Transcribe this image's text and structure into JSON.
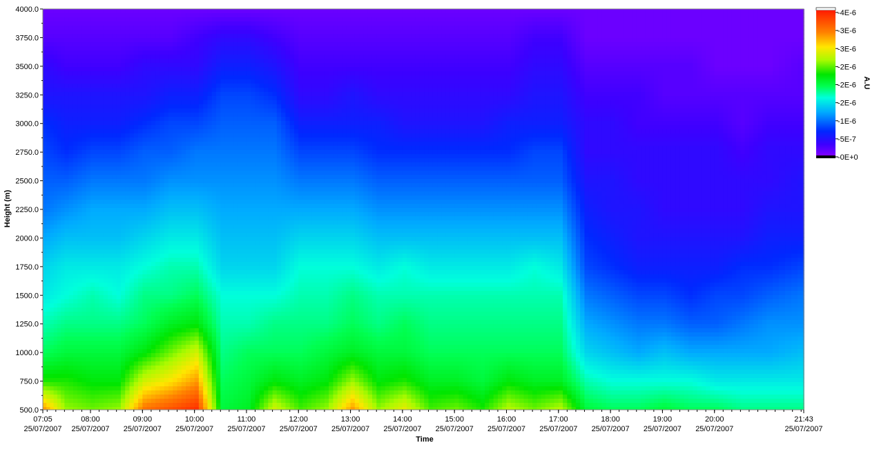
{
  "chart_data": {
    "type": "heatmap",
    "title": "",
    "xlabel": "Time",
    "ylabel": "Height (m)",
    "ylim": [
      500,
      4000
    ],
    "xlim": [
      "07:05",
      "21:43"
    ],
    "date": "25/07/2007",
    "y_ticks": [
      "500.0",
      "750.0",
      "1000.0",
      "1250.0",
      "1500.0",
      "1750.0",
      "2000.0",
      "2250.0",
      "2500.0",
      "2750.0",
      "3000.0",
      "3250.0",
      "3500.0",
      "3750.0",
      "4000.0"
    ],
    "x_ticks": [
      {
        "time": "07:05",
        "date": "25/07/2007"
      },
      {
        "time": "08:00",
        "date": "25/07/2007"
      },
      {
        "time": "09:00",
        "date": "25/07/2007"
      },
      {
        "time": "10:00",
        "date": "25/07/2007"
      },
      {
        "time": "11:00",
        "date": "25/07/2007"
      },
      {
        "time": "12:00",
        "date": "25/07/2007"
      },
      {
        "time": "13:00",
        "date": "25/07/2007"
      },
      {
        "time": "14:00",
        "date": "25/07/2007"
      },
      {
        "time": "15:00",
        "date": "25/07/2007"
      },
      {
        "time": "16:00",
        "date": "25/07/2007"
      },
      {
        "time": "17:00",
        "date": "25/07/2007"
      },
      {
        "time": "18:00",
        "date": "25/07/2007"
      },
      {
        "time": "19:00",
        "date": "25/07/2007"
      },
      {
        "time": "20:00",
        "date": "25/07/2007"
      },
      {
        "time": "21:43",
        "date": "25/07/2007"
      }
    ],
    "colorbar": {
      "label": "A.U",
      "ticks": [
        "4E-6",
        "3E-6",
        "3E-6",
        "2E-6",
        "2E-6",
        "2E-6",
        "1E-6",
        "5E-7",
        "0E+0"
      ],
      "max": 4e-06,
      "min": 0
    },
    "grid": false,
    "profile_heights_m": [
      500,
      750,
      1000,
      1250,
      1500,
      1750,
      2000,
      2250,
      2500,
      2750,
      3000,
      3250,
      3500,
      3750,
      4000
    ],
    "times": [
      "07:05",
      "07:30",
      "08:00",
      "08:30",
      "09:00",
      "09:30",
      "10:00",
      "10:30",
      "11:00",
      "11:30",
      "12:00",
      "12:30",
      "13:00",
      "13:30",
      "14:00",
      "14:30",
      "15:00",
      "15:30",
      "16:00",
      "16:30",
      "17:00",
      "17:30",
      "18:00",
      "18:30",
      "19:00",
      "19:30",
      "20:00",
      "20:30",
      "21:00",
      "21:43"
    ],
    "values_e6": [
      [
        3.3,
        2.3,
        1.9,
        1.7,
        1.5,
        1.4,
        1.2,
        1.0,
        0.9,
        0.8,
        0.7,
        0.5,
        0.4,
        0.2,
        0.1
      ],
      [
        2.6,
        2.3,
        2.0,
        1.8,
        1.6,
        1.5,
        1.3,
        1.1,
        0.9,
        0.7,
        0.6,
        0.5,
        0.3,
        0.2,
        0.1
      ],
      [
        2.5,
        2.2,
        2.0,
        1.8,
        1.7,
        1.5,
        1.3,
        1.2,
        1.0,
        0.8,
        0.6,
        0.5,
        0.3,
        0.2,
        0.1
      ],
      [
        2.6,
        2.2,
        2.0,
        1.8,
        1.6,
        1.5,
        1.3,
        1.2,
        1.0,
        0.8,
        0.6,
        0.5,
        0.3,
        0.2,
        0.1
      ],
      [
        3.5,
        2.8,
        2.2,
        1.9,
        1.8,
        1.6,
        1.4,
        1.2,
        1.0,
        0.9,
        0.7,
        0.5,
        0.4,
        0.2,
        0.1
      ],
      [
        3.7,
        3.0,
        2.5,
        2.1,
        1.8,
        1.7,
        1.5,
        1.3,
        1.1,
        0.9,
        0.8,
        0.6,
        0.4,
        0.2,
        0.1
      ],
      [
        3.9,
        3.3,
        2.8,
        2.2,
        1.9,
        1.7,
        1.5,
        1.3,
        1.1,
        1.0,
        0.8,
        0.6,
        0.4,
        0.3,
        0.1
      ],
      [
        2.0,
        1.9,
        1.8,
        1.7,
        1.6,
        1.4,
        1.3,
        1.2,
        1.1,
        1.0,
        0.9,
        0.8,
        0.6,
        0.4,
        0.1
      ],
      [
        2.1,
        2.0,
        1.9,
        1.7,
        1.6,
        1.4,
        1.3,
        1.2,
        1.1,
        1.0,
        0.9,
        0.8,
        0.6,
        0.4,
        0.1
      ],
      [
        2.8,
        2.2,
        1.9,
        1.8,
        1.6,
        1.4,
        1.3,
        1.2,
        1.1,
        1.0,
        0.9,
        0.7,
        0.5,
        0.3,
        0.1
      ],
      [
        2.4,
        2.1,
        1.9,
        1.8,
        1.7,
        1.6,
        1.4,
        1.2,
        1.0,
        0.8,
        0.6,
        0.4,
        0.3,
        0.2,
        0.1
      ],
      [
        2.6,
        2.2,
        2.0,
        1.8,
        1.7,
        1.6,
        1.4,
        1.2,
        1.0,
        0.8,
        0.6,
        0.4,
        0.3,
        0.2,
        0.1
      ],
      [
        3.3,
        2.6,
        2.1,
        1.9,
        1.8,
        1.6,
        1.4,
        1.2,
        1.0,
        0.8,
        0.6,
        0.5,
        0.3,
        0.2,
        0.1
      ],
      [
        2.6,
        2.2,
        2.0,
        1.8,
        1.7,
        1.5,
        1.3,
        1.1,
        0.9,
        0.7,
        0.6,
        0.4,
        0.3,
        0.2,
        0.1
      ],
      [
        2.9,
        2.3,
        2.0,
        1.9,
        1.7,
        1.6,
        1.3,
        1.1,
        0.9,
        0.7,
        0.5,
        0.4,
        0.3,
        0.2,
        0.1
      ],
      [
        2.4,
        2.1,
        1.9,
        1.8,
        1.7,
        1.5,
        1.3,
        1.1,
        0.9,
        0.7,
        0.5,
        0.4,
        0.3,
        0.2,
        0.1
      ],
      [
        2.5,
        2.1,
        1.9,
        1.8,
        1.7,
        1.5,
        1.3,
        1.1,
        0.9,
        0.7,
        0.5,
        0.4,
        0.3,
        0.2,
        0.1
      ],
      [
        2.3,
        2.0,
        1.9,
        1.8,
        1.7,
        1.5,
        1.3,
        1.1,
        0.9,
        0.7,
        0.5,
        0.4,
        0.3,
        0.2,
        0.1
      ],
      [
        2.7,
        2.2,
        1.9,
        1.8,
        1.7,
        1.5,
        1.3,
        1.1,
        0.9,
        0.7,
        0.6,
        0.4,
        0.3,
        0.2,
        0.1
      ],
      [
        2.5,
        2.1,
        1.9,
        1.8,
        1.7,
        1.6,
        1.3,
        1.1,
        0.9,
        0.8,
        0.6,
        0.5,
        0.4,
        0.3,
        0.1
      ],
      [
        2.7,
        2.1,
        1.9,
        1.8,
        1.7,
        1.5,
        1.3,
        1.1,
        0.9,
        0.8,
        0.6,
        0.5,
        0.4,
        0.3,
        0.1
      ],
      [
        2.0,
        1.7,
        1.4,
        1.2,
        1.0,
        0.8,
        0.7,
        0.6,
        0.5,
        0.4,
        0.4,
        0.3,
        0.2,
        0.1,
        0.1
      ],
      [
        1.9,
        1.6,
        1.3,
        1.1,
        0.9,
        0.7,
        0.6,
        0.5,
        0.5,
        0.4,
        0.4,
        0.3,
        0.2,
        0.1,
        0.1
      ],
      [
        1.9,
        1.6,
        1.2,
        1.0,
        0.8,
        0.6,
        0.5,
        0.5,
        0.4,
        0.4,
        0.3,
        0.3,
        0.2,
        0.1,
        0.1
      ],
      [
        2.0,
        1.6,
        1.3,
        1.0,
        0.8,
        0.6,
        0.5,
        0.4,
        0.4,
        0.4,
        0.3,
        0.2,
        0.2,
        0.1,
        0.1
      ],
      [
        1.9,
        1.6,
        1.2,
        0.9,
        0.7,
        0.6,
        0.5,
        0.4,
        0.4,
        0.4,
        0.3,
        0.2,
        0.2,
        0.1,
        0.1
      ],
      [
        1.9,
        1.5,
        1.2,
        0.9,
        0.8,
        0.6,
        0.5,
        0.4,
        0.4,
        0.4,
        0.3,
        0.2,
        0.1,
        0.1,
        0.1
      ],
      [
        1.8,
        1.5,
        1.2,
        1.0,
        0.8,
        0.7,
        0.5,
        0.4,
        0.4,
        0.3,
        0.2,
        0.2,
        0.1,
        0.1,
        0.1
      ],
      [
        1.8,
        1.5,
        1.2,
        1.1,
        0.9,
        0.7,
        0.6,
        0.5,
        0.4,
        0.4,
        0.3,
        0.2,
        0.1,
        0.1,
        0.1
      ],
      [
        1.8,
        1.5,
        1.3,
        1.1,
        1.0,
        0.8,
        0.6,
        0.5,
        0.5,
        0.4,
        0.3,
        0.2,
        0.2,
        0.1,
        0.1
      ]
    ]
  }
}
